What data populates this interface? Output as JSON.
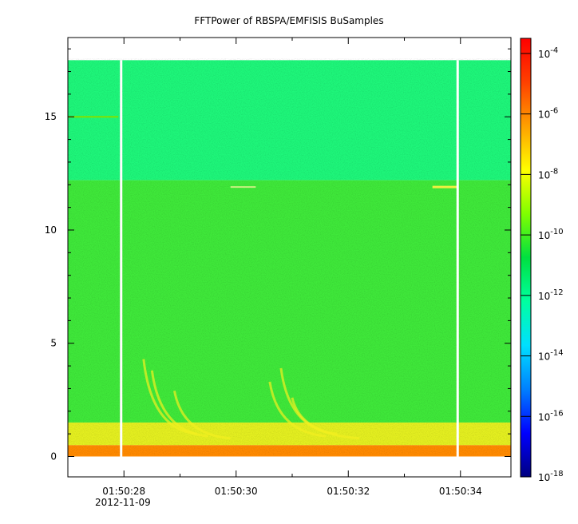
{
  "chart_data": {
    "type": "heatmap",
    "title": "FFTPower of RBSPA/EMFISIS  BuSamples",
    "xlabel": "",
    "ylabel": "",
    "date_label": "2012-11-09",
    "x_ticks": [
      "01:50:28",
      "01:50:30",
      "01:50:32",
      "01:50:34"
    ],
    "x_tick_seconds": [
      28,
      30,
      32,
      34
    ],
    "x_range_seconds": [
      27.0,
      34.9
    ],
    "y_ticks": [
      0,
      5,
      10,
      15
    ],
    "ylim": [
      -0.9,
      18.5
    ],
    "data_extent_y": [
      0,
      17.5
    ],
    "data_gaps_seconds": [
      27.95,
      33.95
    ],
    "colorbar": {
      "scale": "log",
      "range_exponent": [
        -18,
        -3.5
      ],
      "tick_exponents": [
        -4,
        -6,
        -8,
        -10,
        -12,
        -14,
        -16,
        -18
      ],
      "tick_base": "10",
      "colors": [
        "#000080",
        "#0000ff",
        "#0080ff",
        "#00e0ff",
        "#00ffa0",
        "#00e040",
        "#80ff00",
        "#ffff00",
        "#ffa000",
        "#ff4000",
        "#ff0000"
      ]
    },
    "bands": [
      {
        "y_from": 12.2,
        "y_to": 17.5,
        "label_level_exponent": -12,
        "color": "#1ef67a"
      },
      {
        "y_from": 1.5,
        "y_to": 12.2,
        "label_level_exponent": -10,
        "color": "#3fe83a"
      },
      {
        "y_from": 0.5,
        "y_to": 1.5,
        "label_level_exponent": -8,
        "color": "#e4ef20"
      },
      {
        "y_from": 0.0,
        "y_to": 0.5,
        "label_level_exponent": -6,
        "color": "#ff8a00"
      }
    ]
  }
}
